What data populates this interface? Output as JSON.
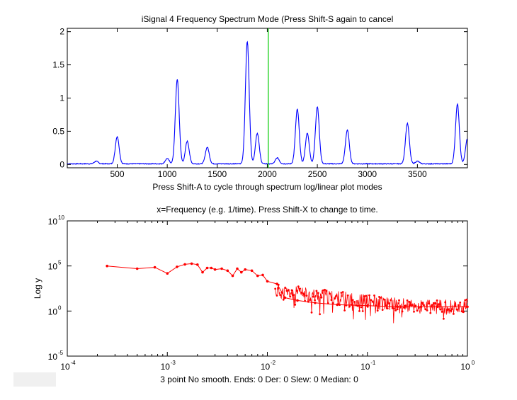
{
  "status_text": "3 point No smooth. Ends: 0    Der: 0    Slew: 0    Median: 0",
  "chart_data": [
    {
      "type": "line",
      "title": "iSignal 4   Frequency Spectrum Mode (Press Shift-S again to cancel",
      "xlabel": "Press Shift-A to cycle through spectrum log/linear plot modes",
      "ylabel": "",
      "xlim": [
        1,
        4000
      ],
      "ylim": [
        -0.05,
        2.05
      ],
      "xticks": [
        500,
        1000,
        1500,
        2000,
        2500,
        3000,
        3500
      ],
      "xtick_labels": [
        "500",
        "1000",
        "1500",
        "2000",
        "2500",
        "3000",
        "3500"
      ],
      "yticks": [
        0,
        0.5,
        1,
        1.5,
        2
      ],
      "ytick_labels": [
        "0",
        "0.5",
        "1",
        "1.5",
        "2"
      ],
      "grid": false,
      "series_color": "#0000ff",
      "marker_color": "#00cc00",
      "marker_x": 2010,
      "baseline": 0.01,
      "peaks": [
        {
          "x": 290,
          "y": 0.04
        },
        {
          "x": 500,
          "y": 0.41
        },
        {
          "x": 1000,
          "y": 0.08
        },
        {
          "x": 1100,
          "y": 1.27
        },
        {
          "x": 1200,
          "y": 0.34
        },
        {
          "x": 1400,
          "y": 0.25
        },
        {
          "x": 1800,
          "y": 1.84
        },
        {
          "x": 1900,
          "y": 0.46
        },
        {
          "x": 2100,
          "y": 0.09
        },
        {
          "x": 2300,
          "y": 0.82
        },
        {
          "x": 2400,
          "y": 0.46
        },
        {
          "x": 2500,
          "y": 0.86
        },
        {
          "x": 2800,
          "y": 0.51
        },
        {
          "x": 3400,
          "y": 0.61
        },
        {
          "x": 3500,
          "y": 0.04
        },
        {
          "x": 3900,
          "y": 0.9
        },
        {
          "x": 4000,
          "y": 0.38
        }
      ]
    },
    {
      "type": "scatter",
      "title": "x=Frequency (e.g. 1/time). Press Shift-X to change to time.",
      "xlabel": "",
      "ylabel": "Log y",
      "xscale": "log",
      "yscale": "log",
      "xlim": [
        0.0001,
        1
      ],
      "ylim": [
        1e-05,
        10000000000
      ],
      "xtick_bases": [
        "10",
        "10",
        "10",
        "10",
        "10"
      ],
      "xtick_exps": [
        "-4",
        "-3",
        "-2",
        "-1",
        "0"
      ],
      "ytick_bases": [
        "10",
        "10",
        "10",
        "10"
      ],
      "ytick_exps": [
        "-5",
        "0",
        "5",
        "10"
      ],
      "grid": false,
      "series_color": "#ff0000",
      "x": [
        0.00025,
        0.0005,
        0.00075,
        0.001,
        0.00125,
        0.0015,
        0.00175,
        0.002,
        0.00225,
        0.0025,
        0.00275,
        0.003,
        0.0035,
        0.004,
        0.0045,
        0.005,
        0.0055,
        0.006,
        0.007,
        0.008,
        0.009,
        0.01,
        0.0125,
        0.015,
        0.02,
        0.03,
        0.05,
        0.1,
        0.2,
        0.5,
        1.0
      ],
      "y": [
        100000,
        50000,
        70000,
        15000,
        80000,
        150000,
        180000,
        140000,
        20000,
        60000,
        60000,
        40000,
        50000,
        30000,
        8000,
        50000,
        20000,
        40000,
        30000,
        8000,
        10000,
        2000,
        1000,
        30,
        15,
        8,
        5,
        4,
        3,
        3,
        3
      ]
    }
  ]
}
